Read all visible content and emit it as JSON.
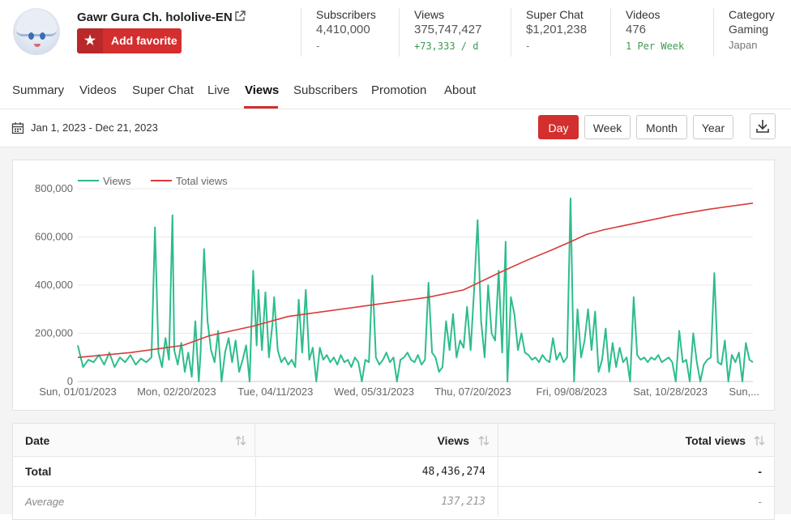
{
  "channel": {
    "name": "Gawr Gura Ch. hololive-EN",
    "favorite_label": "Add favorite"
  },
  "stats": [
    {
      "title": "Subscribers",
      "value": "4,410,000",
      "delta": "-"
    },
    {
      "title": "Views",
      "value": "375,747,427",
      "delta": "+73,333 / d"
    },
    {
      "title": "Super Chat",
      "value": "$1,201,238",
      "delta": "-"
    },
    {
      "title": "Videos",
      "value": "476",
      "delta": "1 Per Week"
    },
    {
      "title": "Category",
      "value": "Gaming",
      "delta": "Japan"
    }
  ],
  "tabs": [
    "Summary",
    "Videos",
    "Super Chat",
    "Live",
    "Views",
    "Subscribers",
    "Promotion",
    "About"
  ],
  "active_tab": "Views",
  "toolbar": {
    "date_range": "Jan 1, 2023 - Dec 21, 2023",
    "periods": [
      "Day",
      "Week",
      "Month",
      "Year"
    ],
    "active_period": "Day"
  },
  "colors": {
    "accent": "#d32f2f",
    "views_series": "#2dbd8a",
    "total_series": "#d93a3a",
    "positive": "#3d9a4f"
  },
  "icons": {
    "external": "external-link-icon",
    "star": "star-icon",
    "calendar": "calendar-icon",
    "download": "download-icon",
    "sort": "sort-icon"
  },
  "chart_data": {
    "type": "line",
    "x_ticks": [
      "Sun, 01/01/2023",
      "Mon, 02/20/2023",
      "Tue, 04/11/2023",
      "Wed, 05/31/2023",
      "Thu, 07/20/2023",
      "Fri, 09/08/2023",
      "Sat, 10/28/2023",
      "Sun,..."
    ],
    "y_ticks": [
      "0",
      "200,000",
      "400,000",
      "600,000",
      "800,000"
    ],
    "ylim": [
      0,
      800000
    ],
    "legend": [
      "Views",
      "Total views"
    ],
    "legend_position": "top-left",
    "grid": true,
    "x_day_range": [
      0,
      354
    ],
    "series": [
      {
        "name": "Views",
        "points": [
          [
            0,
            150000
          ],
          [
            3,
            60000
          ],
          [
            6,
            90000
          ],
          [
            9,
            80000
          ],
          [
            12,
            110000
          ],
          [
            15,
            70000
          ],
          [
            18,
            120000
          ],
          [
            21,
            60000
          ],
          [
            24,
            100000
          ],
          [
            27,
            80000
          ],
          [
            30,
            110000
          ],
          [
            33,
            70000
          ],
          [
            36,
            95000
          ],
          [
            39,
            80000
          ],
          [
            42,
            100000
          ],
          [
            44,
            640000
          ],
          [
            46,
            120000
          ],
          [
            48,
            60000
          ],
          [
            50,
            180000
          ],
          [
            52,
            90000
          ],
          [
            54,
            690000
          ],
          [
            55,
            130000
          ],
          [
            57,
            70000
          ],
          [
            59,
            160000
          ],
          [
            61,
            40000
          ],
          [
            63,
            120000
          ],
          [
            65,
            20000
          ],
          [
            67,
            250000
          ],
          [
            69,
            0
          ],
          [
            70,
            120000
          ],
          [
            72,
            550000
          ],
          [
            74,
            250000
          ],
          [
            76,
            130000
          ],
          [
            78,
            80000
          ],
          [
            80,
            210000
          ],
          [
            82,
            0
          ],
          [
            84,
            120000
          ],
          [
            86,
            180000
          ],
          [
            88,
            80000
          ],
          [
            90,
            170000
          ],
          [
            92,
            40000
          ],
          [
            94,
            90000
          ],
          [
            96,
            150000
          ],
          [
            98,
            0
          ],
          [
            100,
            460000
          ],
          [
            102,
            150000
          ],
          [
            103,
            380000
          ],
          [
            105,
            130000
          ],
          [
            107,
            370000
          ],
          [
            109,
            100000
          ],
          [
            111,
            240000
          ],
          [
            112,
            350000
          ],
          [
            114,
            130000
          ],
          [
            116,
            80000
          ],
          [
            118,
            100000
          ],
          [
            120,
            70000
          ],
          [
            122,
            90000
          ],
          [
            124,
            60000
          ],
          [
            126,
            340000
          ],
          [
            128,
            120000
          ],
          [
            130,
            380000
          ],
          [
            132,
            90000
          ],
          [
            134,
            140000
          ],
          [
            136,
            0
          ],
          [
            138,
            140000
          ],
          [
            140,
            90000
          ],
          [
            142,
            110000
          ],
          [
            144,
            80000
          ],
          [
            146,
            100000
          ],
          [
            148,
            70000
          ],
          [
            150,
            110000
          ],
          [
            152,
            80000
          ],
          [
            154,
            90000
          ],
          [
            156,
            60000
          ],
          [
            158,
            100000
          ],
          [
            160,
            80000
          ],
          [
            162,
            0
          ],
          [
            164,
            90000
          ],
          [
            166,
            80000
          ],
          [
            168,
            440000
          ],
          [
            170,
            100000
          ],
          [
            172,
            70000
          ],
          [
            174,
            90000
          ],
          [
            176,
            120000
          ],
          [
            178,
            80000
          ],
          [
            180,
            100000
          ],
          [
            182,
            0
          ],
          [
            184,
            90000
          ],
          [
            186,
            100000
          ],
          [
            188,
            120000
          ],
          [
            190,
            90000
          ],
          [
            192,
            80000
          ],
          [
            194,
            110000
          ],
          [
            196,
            70000
          ],
          [
            198,
            90000
          ],
          [
            200,
            410000
          ],
          [
            202,
            120000
          ],
          [
            204,
            100000
          ],
          [
            206,
            40000
          ],
          [
            208,
            60000
          ],
          [
            210,
            250000
          ],
          [
            212,
            130000
          ],
          [
            214,
            280000
          ],
          [
            216,
            100000
          ],
          [
            218,
            170000
          ],
          [
            220,
            140000
          ],
          [
            222,
            310000
          ],
          [
            224,
            130000
          ],
          [
            226,
            380000
          ],
          [
            228,
            670000
          ],
          [
            230,
            250000
          ],
          [
            232,
            100000
          ],
          [
            234,
            400000
          ],
          [
            236,
            200000
          ],
          [
            238,
            170000
          ],
          [
            240,
            460000
          ],
          [
            242,
            120000
          ],
          [
            244,
            580000
          ],
          [
            245,
            0
          ],
          [
            247,
            350000
          ],
          [
            249,
            280000
          ],
          [
            251,
            130000
          ],
          [
            253,
            200000
          ],
          [
            255,
            120000
          ],
          [
            257,
            110000
          ],
          [
            259,
            90000
          ],
          [
            261,
            100000
          ],
          [
            263,
            80000
          ],
          [
            265,
            110000
          ],
          [
            267,
            90000
          ],
          [
            269,
            80000
          ],
          [
            271,
            180000
          ],
          [
            273,
            90000
          ],
          [
            275,
            120000
          ],
          [
            277,
            80000
          ],
          [
            279,
            100000
          ],
          [
            281,
            760000
          ],
          [
            283,
            0
          ],
          [
            285,
            300000
          ],
          [
            287,
            100000
          ],
          [
            289,
            170000
          ],
          [
            291,
            300000
          ],
          [
            293,
            130000
          ],
          [
            295,
            290000
          ],
          [
            297,
            40000
          ],
          [
            299,
            90000
          ],
          [
            301,
            220000
          ],
          [
            303,
            40000
          ],
          [
            305,
            160000
          ],
          [
            307,
            60000
          ],
          [
            309,
            140000
          ],
          [
            311,
            80000
          ],
          [
            313,
            100000
          ],
          [
            315,
            0
          ],
          [
            317,
            350000
          ],
          [
            319,
            110000
          ],
          [
            321,
            90000
          ],
          [
            323,
            100000
          ],
          [
            325,
            80000
          ],
          [
            327,
            100000
          ],
          [
            329,
            90000
          ],
          [
            331,
            110000
          ],
          [
            333,
            80000
          ],
          [
            335,
            90000
          ],
          [
            337,
            100000
          ],
          [
            339,
            80000
          ],
          [
            341,
            0
          ],
          [
            343,
            210000
          ],
          [
            345,
            80000
          ],
          [
            347,
            90000
          ],
          [
            349,
            0
          ],
          [
            351,
            200000
          ],
          [
            353,
            80000
          ],
          [
            355,
            0
          ],
          [
            357,
            70000
          ],
          [
            359,
            90000
          ],
          [
            361,
            100000
          ],
          [
            363,
            450000
          ],
          [
            365,
            80000
          ],
          [
            367,
            70000
          ],
          [
            369,
            170000
          ],
          [
            371,
            0
          ],
          [
            373,
            110000
          ],
          [
            375,
            80000
          ],
          [
            377,
            120000
          ],
          [
            379,
            0
          ],
          [
            381,
            160000
          ],
          [
            383,
            90000
          ],
          [
            385,
            80000
          ]
        ]
      },
      {
        "name": "Total views",
        "points": [
          [
            0,
            100000
          ],
          [
            30,
            120000
          ],
          [
            60,
            150000
          ],
          [
            75,
            190000
          ],
          [
            100,
            230000
          ],
          [
            120,
            270000
          ],
          [
            160,
            310000
          ],
          [
            200,
            350000
          ],
          [
            220,
            380000
          ],
          [
            240,
            450000
          ],
          [
            255,
            500000
          ],
          [
            270,
            545000
          ],
          [
            281,
            580000
          ],
          [
            290,
            610000
          ],
          [
            300,
            630000
          ],
          [
            320,
            660000
          ],
          [
            340,
            690000
          ],
          [
            360,
            715000
          ],
          [
            385,
            740000
          ]
        ]
      }
    ]
  },
  "table": {
    "headers": [
      "Date",
      "Views",
      "Total views"
    ],
    "rows": [
      {
        "date": "Total",
        "views": "48,436,274",
        "total": "-"
      },
      {
        "date": "Average",
        "views": "137,213",
        "total": "-"
      }
    ]
  }
}
